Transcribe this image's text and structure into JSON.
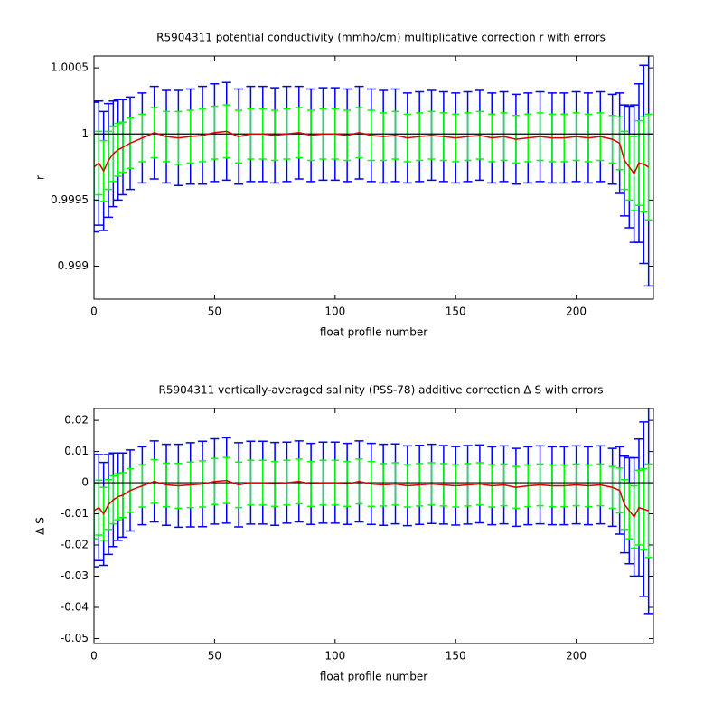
{
  "chart_data": [
    {
      "type": "errorbar",
      "title": "R5904311 potential conductivity (mmho/cm) multiplicative correction r with errors",
      "xlabel": "float profile number",
      "ylabel": "r",
      "xlim": [
        0,
        232
      ],
      "xticks": [
        0,
        50,
        100,
        150,
        200
      ],
      "ylim": [
        0.99875,
        1.00059
      ],
      "yticks": [
        0.999,
        0.9995,
        1,
        1.0005
      ],
      "hline": 1,
      "hline_color": "#000000",
      "x": [
        0,
        2,
        4,
        6,
        8,
        10,
        12,
        15,
        20,
        25,
        30,
        35,
        40,
        45,
        50,
        55,
        60,
        65,
        70,
        75,
        80,
        85,
        90,
        95,
        100,
        105,
        110,
        115,
        120,
        125,
        130,
        135,
        140,
        145,
        150,
        155,
        160,
        165,
        170,
        175,
        180,
        185,
        190,
        195,
        200,
        205,
        210,
        215,
        218,
        220,
        222,
        224,
        226,
        228,
        230
      ],
      "color": "#dd0000",
      "values": [
        0.99975,
        0.99978,
        0.99972,
        0.9998,
        0.99985,
        0.99988,
        0.9999,
        0.99993,
        0.99997,
        1.00001,
        0.99998,
        0.99997,
        0.99998,
        0.99999,
        1.00001,
        1.00002,
        0.99998,
        1.0,
        1.0,
        0.99999,
        1.0,
        1.00001,
        0.99999,
        1.0,
        1.0,
        0.99999,
        1.00001,
        0.99999,
        0.99998,
        0.99999,
        0.99997,
        0.99998,
        0.99999,
        0.99998,
        0.99997,
        0.99998,
        0.99999,
        0.99997,
        0.99998,
        0.99996,
        0.99997,
        0.99998,
        0.99997,
        0.99997,
        0.99998,
        0.99997,
        0.99998,
        0.99996,
        0.99993,
        0.9998,
        0.99975,
        0.9997,
        0.99978,
        0.99977,
        0.99975
      ],
      "error_bars": [
        {
          "color": "#0000ff",
          "errors": [
            0.00049,
            0.00047,
            0.00045,
            0.00043,
            0.0004,
            0.00038,
            0.00036,
            0.00035,
            0.00034,
            0.00035,
            0.00035,
            0.00036,
            0.00036,
            0.00037,
            0.00037,
            0.00037,
            0.00036,
            0.00036,
            0.00036,
            0.00036,
            0.00036,
            0.00035,
            0.00035,
            0.00035,
            0.00035,
            0.00035,
            0.00035,
            0.00035,
            0.00035,
            0.00035,
            0.00034,
            0.00034,
            0.00034,
            0.00034,
            0.00034,
            0.00034,
            0.00034,
            0.00034,
            0.00034,
            0.00034,
            0.00034,
            0.00034,
            0.00034,
            0.00034,
            0.00034,
            0.00034,
            0.00034,
            0.00034,
            0.00038,
            0.00042,
            0.00046,
            0.00052,
            0.0006,
            0.00075,
            0.0009
          ]
        },
        {
          "color": "#00ff00",
          "errors": [
            0.00025,
            0.00024,
            0.00023,
            0.00022,
            0.00021,
            0.0002,
            0.00019,
            0.00019,
            0.00018,
            0.00019,
            0.00019,
            0.0002,
            0.0002,
            0.0002,
            0.0002,
            0.0002,
            0.0002,
            0.00019,
            0.00019,
            0.00019,
            0.00019,
            0.00019,
            0.00019,
            0.00019,
            0.00019,
            0.00019,
            0.00019,
            0.00019,
            0.00018,
            0.00018,
            0.00018,
            0.00018,
            0.00018,
            0.00018,
            0.00018,
            0.00018,
            0.00018,
            0.00018,
            0.00018,
            0.00018,
            0.00018,
            0.00018,
            0.00018,
            0.00018,
            0.00018,
            0.00018,
            0.00018,
            0.00018,
            0.0002,
            0.00022,
            0.00025,
            0.00028,
            0.00032,
            0.00036,
            0.0004
          ]
        }
      ]
    },
    {
      "type": "errorbar",
      "title": "R5904311 vertically-averaged salinity (PSS-78) additive correction Δ S with errors",
      "xlabel": "float profile number",
      "ylabel": "Δ S",
      "xlim": [
        0,
        232
      ],
      "xticks": [
        0,
        50,
        100,
        150,
        200
      ],
      "ylim": [
        -0.0516,
        0.0238
      ],
      "yticks": [
        -0.05,
        -0.04,
        -0.03,
        -0.02,
        -0.01,
        0,
        0.01,
        0.02
      ],
      "hline": 0,
      "hline_color": "#000000",
      "x": [
        0,
        2,
        4,
        6,
        8,
        10,
        12,
        15,
        20,
        25,
        30,
        35,
        40,
        45,
        50,
        55,
        60,
        65,
        70,
        75,
        80,
        85,
        90,
        95,
        100,
        105,
        110,
        115,
        120,
        125,
        130,
        135,
        140,
        145,
        150,
        155,
        160,
        165,
        170,
        175,
        180,
        185,
        190,
        195,
        200,
        205,
        210,
        215,
        218,
        220,
        222,
        224,
        226,
        228,
        230
      ],
      "color": "#dd0000",
      "values": [
        -0.009,
        -0.008,
        -0.01,
        -0.007,
        -0.0055,
        -0.0045,
        -0.004,
        -0.0025,
        -0.001,
        0.0004,
        -0.0007,
        -0.001,
        -0.0007,
        -0.0004,
        0.0004,
        0.0007,
        -0.0007,
        0,
        0,
        -0.0004,
        0,
        0.0004,
        -0.0004,
        0,
        0,
        -0.0004,
        0.0004,
        -0.0004,
        -0.0007,
        -0.0004,
        -0.001,
        -0.0007,
        -0.0004,
        -0.0007,
        -0.001,
        -0.0007,
        -0.0004,
        -0.001,
        -0.0007,
        -0.0015,
        -0.001,
        -0.0007,
        -0.001,
        -0.001,
        -0.0007,
        -0.001,
        -0.0007,
        -0.0015,
        -0.0025,
        -0.007,
        -0.009,
        -0.011,
        -0.008,
        -0.0085,
        -0.009
      ],
      "error_bars": [
        {
          "color": "#0000ff",
          "errors": [
            0.018,
            0.017,
            0.0165,
            0.016,
            0.015,
            0.014,
            0.0135,
            0.013,
            0.0125,
            0.013,
            0.013,
            0.0133,
            0.0135,
            0.0137,
            0.0137,
            0.0137,
            0.0135,
            0.0133,
            0.0133,
            0.0133,
            0.013,
            0.013,
            0.013,
            0.013,
            0.013,
            0.013,
            0.013,
            0.013,
            0.013,
            0.0128,
            0.0128,
            0.0127,
            0.0127,
            0.0126,
            0.0126,
            0.0126,
            0.0125,
            0.0125,
            0.0125,
            0.0125,
            0.0125,
            0.0125,
            0.0125,
            0.0125,
            0.0125,
            0.0125,
            0.0125,
            0.0125,
            0.014,
            0.0155,
            0.017,
            0.019,
            0.022,
            0.028,
            0.033
          ]
        },
        {
          "color": "#00ff00",
          "errors": [
            0.009,
            0.0088,
            0.0085,
            0.008,
            0.0077,
            0.0074,
            0.0072,
            0.007,
            0.0068,
            0.007,
            0.007,
            0.0072,
            0.0073,
            0.0074,
            0.0074,
            0.0074,
            0.0073,
            0.0072,
            0.0072,
            0.0072,
            0.0072,
            0.0072,
            0.0072,
            0.0072,
            0.0072,
            0.0072,
            0.0072,
            0.0072,
            0.0068,
            0.0068,
            0.0068,
            0.0068,
            0.0068,
            0.0068,
            0.0068,
            0.0068,
            0.0068,
            0.0068,
            0.0067,
            0.0067,
            0.0067,
            0.0067,
            0.0067,
            0.0067,
            0.0067,
            0.0067,
            0.0067,
            0.0067,
            0.0072,
            0.008,
            0.009,
            0.01,
            0.012,
            0.013,
            0.015
          ]
        }
      ]
    }
  ]
}
